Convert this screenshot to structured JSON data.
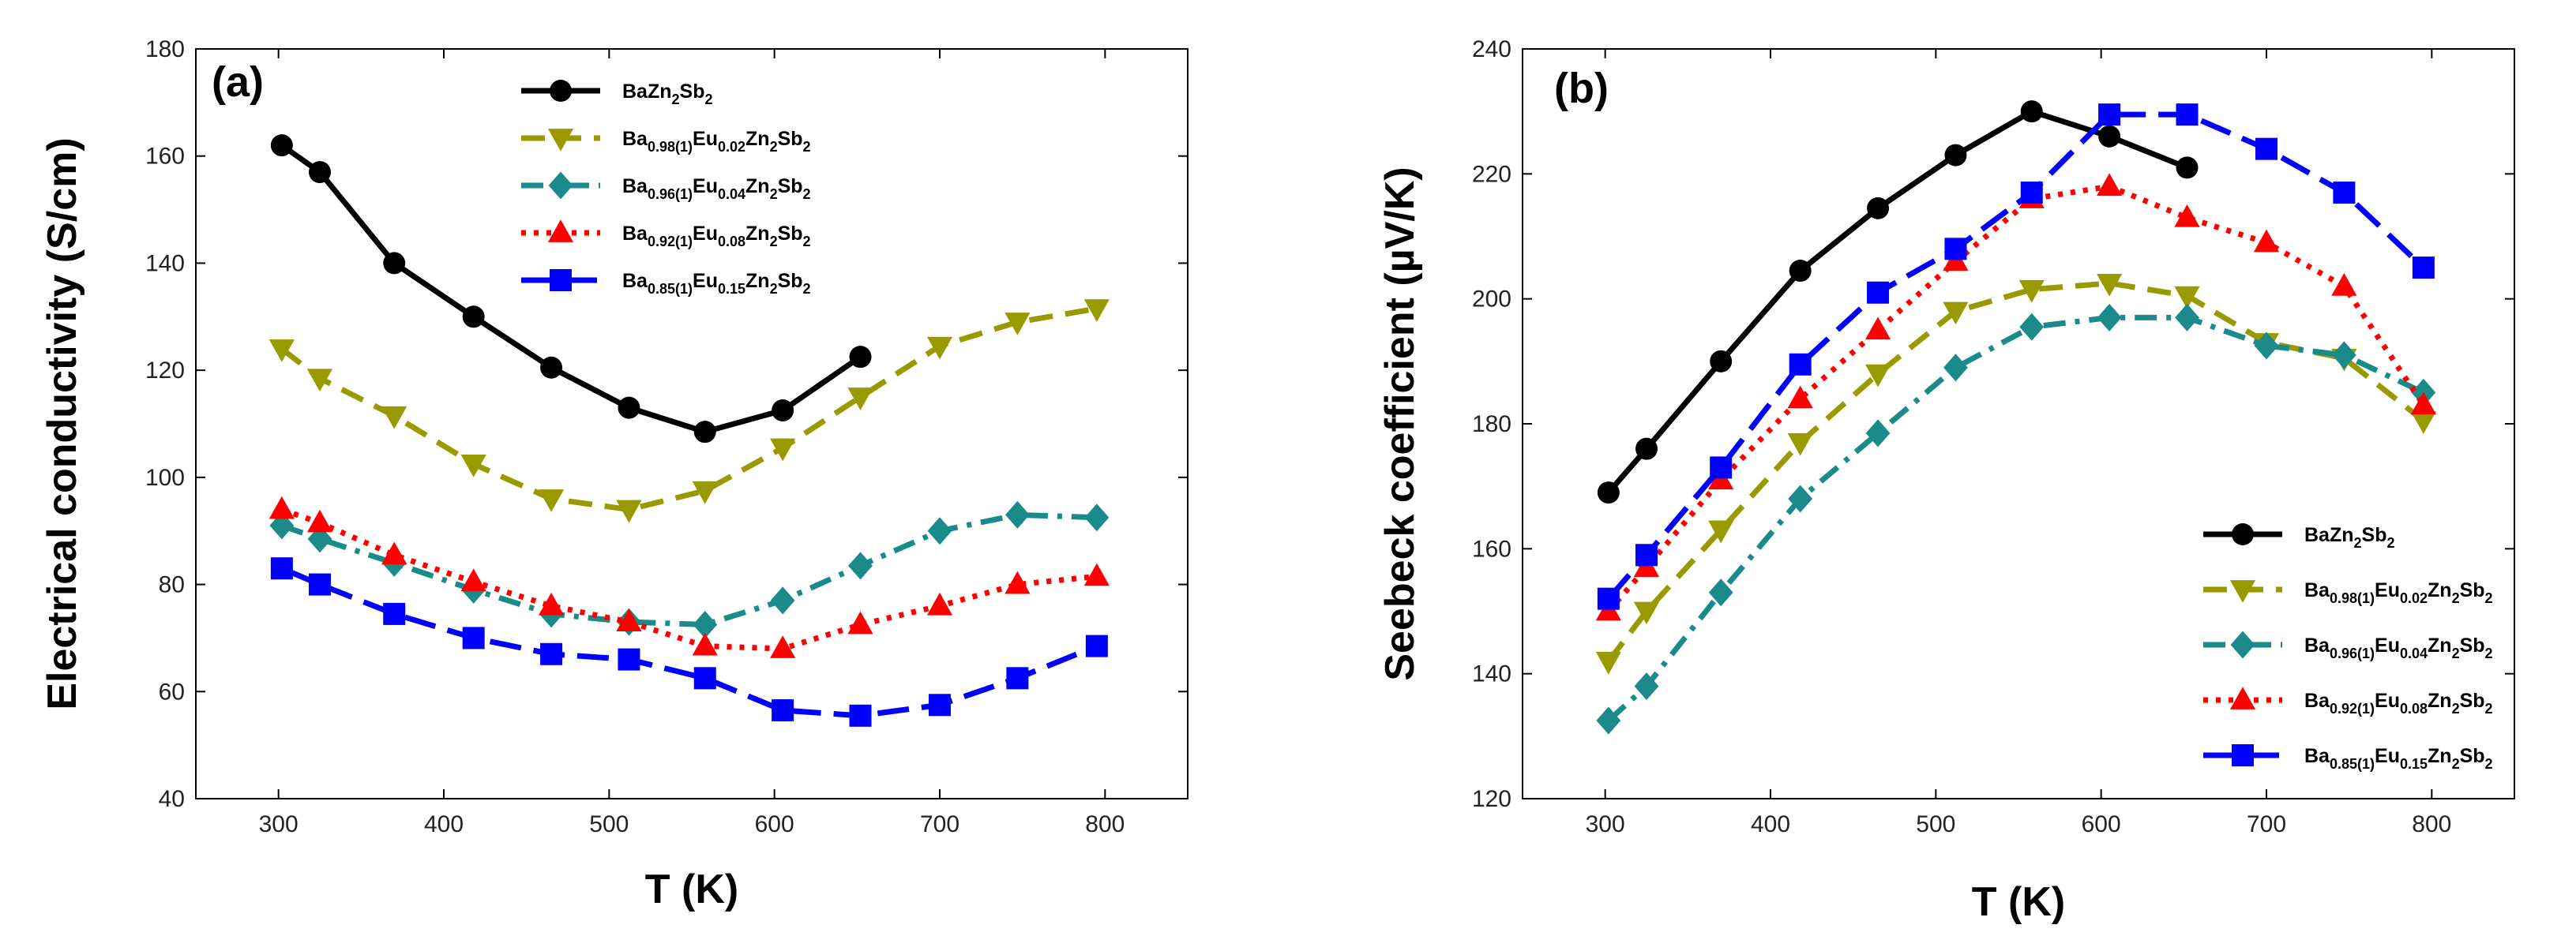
{
  "chart_data": [
    {
      "type": "line",
      "panel_label": "(a)",
      "xlabel": "T (K)",
      "ylabel": "Electrical conductivity (S/cm)",
      "xlim": [
        250,
        850
      ],
      "ylim": [
        40,
        180
      ],
      "xticks": [
        300,
        400,
        500,
        600,
        700,
        800
      ],
      "yticks": [
        40,
        60,
        80,
        100,
        120,
        140,
        160,
        180
      ],
      "legend_position": "top-center",
      "series": [
        {
          "name": "BaZn2Sb2",
          "color": "#000000",
          "marker": "circle",
          "dash": "solid",
          "x": [
            302,
            325,
            370,
            418,
            465,
            512,
            558,
            605,
            652
          ],
          "y": [
            162,
            157,
            140,
            130,
            120.5,
            113,
            108.5,
            112.5,
            122.5
          ]
        },
        {
          "name": "Ba0.98(1)Eu0.02Zn2Sb2",
          "color": "#999900",
          "marker": "triangle-down",
          "dash": "dashed",
          "x": [
            302,
            325,
            370,
            418,
            465,
            512,
            558,
            605,
            652,
            700,
            747,
            795
          ],
          "y": [
            124,
            118.5,
            111.5,
            102.5,
            96,
            94,
            97.5,
            105.5,
            115,
            124.5,
            129,
            131.5
          ]
        },
        {
          "name": "Ba0.96(1)Eu0.04Zn2Sb2",
          "color": "#1a8a8a",
          "marker": "diamond",
          "dash": "dashdot",
          "x": [
            302,
            325,
            370,
            418,
            465,
            512,
            558,
            605,
            652,
            700,
            747,
            795
          ],
          "y": [
            91,
            88.5,
            84,
            79,
            74.5,
            73,
            72.5,
            77,
            83.5,
            90,
            93,
            92.5
          ]
        },
        {
          "name": "Ba0.92(1)Eu0.08Zn2Sb2",
          "color": "#ff0000",
          "marker": "triangle-up",
          "dash": "dotted",
          "x": [
            302,
            325,
            370,
            418,
            465,
            512,
            558,
            605,
            652,
            700,
            747,
            795
          ],
          "y": [
            94,
            91.5,
            85.5,
            80.5,
            76,
            73,
            68.5,
            68,
            72.5,
            76,
            80,
            81.5
          ]
        },
        {
          "name": "Ba0.85(1)Eu0.15Zn2Sb2",
          "color": "#0000ff",
          "marker": "square",
          "dash": "longdash",
          "x": [
            302,
            325,
            370,
            418,
            465,
            512,
            558,
            605,
            652,
            700,
            747,
            795
          ],
          "y": [
            83,
            80,
            74.5,
            70,
            67,
            66,
            62.5,
            56.5,
            55.5,
            57.5,
            62.5,
            68.5
          ]
        }
      ]
    },
    {
      "type": "line",
      "panel_label": "(b)",
      "xlabel": "T (K)",
      "ylabel": "Seebeck coefficient (µV/K)",
      "xlim": [
        250,
        850
      ],
      "ylim": [
        120,
        240
      ],
      "xticks": [
        300,
        400,
        500,
        600,
        700,
        800
      ],
      "yticks": [
        120,
        140,
        160,
        180,
        200,
        220,
        240
      ],
      "legend_position": "bottom-right",
      "series": [
        {
          "name": "BaZn2Sb2",
          "color": "#000000",
          "marker": "circle",
          "dash": "solid",
          "x": [
            302,
            325,
            370,
            418,
            465,
            512,
            558,
            605,
            652
          ],
          "y": [
            169,
            176,
            190,
            204.5,
            214.5,
            223,
            230,
            226,
            221
          ]
        },
        {
          "name": "Ba0.98(1)Eu0.02Zn2Sb2",
          "color": "#999900",
          "marker": "triangle-down",
          "dash": "dashed",
          "x": [
            302,
            325,
            370,
            418,
            465,
            512,
            558,
            605,
            652,
            700,
            747,
            795
          ],
          "y": [
            142,
            150,
            163,
            177,
            188,
            198,
            201.5,
            202.5,
            200.5,
            193,
            190.5,
            180.5
          ]
        },
        {
          "name": "Ba0.96(1)Eu0.04Zn2Sb2",
          "color": "#1a8a8a",
          "marker": "diamond",
          "dash": "dashdot",
          "x": [
            302,
            325,
            370,
            418,
            465,
            512,
            558,
            605,
            652,
            700,
            747,
            795
          ],
          "y": [
            132.5,
            138,
            153,
            168,
            178.5,
            189,
            195.5,
            197,
            197,
            192.5,
            191,
            185
          ]
        },
        {
          "name": "Ba0.92(1)Eu0.08Zn2Sb2",
          "color": "#ff0000",
          "marker": "triangle-up",
          "dash": "dotted",
          "x": [
            302,
            325,
            370,
            418,
            465,
            512,
            558,
            605,
            652,
            700,
            747,
            795
          ],
          "y": [
            150,
            157,
            171,
            184,
            195,
            206,
            216,
            218,
            213,
            209,
            202,
            183
          ]
        },
        {
          "name": "Ba0.85(1)Eu0.15Zn2Sb2",
          "color": "#0000ff",
          "marker": "square",
          "dash": "longdash",
          "x": [
            302,
            325,
            370,
            418,
            465,
            512,
            558,
            605,
            652,
            700,
            747,
            795
          ],
          "y": [
            152,
            159,
            173,
            189.5,
            201,
            208,
            217,
            229.5,
            229.5,
            224,
            217,
            205
          ]
        }
      ]
    }
  ],
  "legend_labels": [
    {
      "base": "Ba",
      "parts": [
        {
          "t": "Zn",
          "s": ""
        },
        {
          "t": "",
          "s": "2"
        },
        {
          "t": "Sb",
          "s": ""
        },
        {
          "t": "",
          "s": "2"
        }
      ]
    },
    {
      "base": "Ba",
      "parts": [
        {
          "t": "",
          "s": "0.98(1)"
        },
        {
          "t": "Eu",
          "s": ""
        },
        {
          "t": "",
          "s": "0.02"
        },
        {
          "t": "Zn",
          "s": ""
        },
        {
          "t": "",
          "s": "2"
        },
        {
          "t": "Sb",
          "s": ""
        },
        {
          "t": "",
          "s": "2"
        }
      ]
    },
    {
      "base": "Ba",
      "parts": [
        {
          "t": "",
          "s": "0.96(1)"
        },
        {
          "t": "Eu",
          "s": ""
        },
        {
          "t": "",
          "s": "0.04"
        },
        {
          "t": "Zn",
          "s": ""
        },
        {
          "t": "",
          "s": "2"
        },
        {
          "t": "Sb",
          "s": ""
        },
        {
          "t": "",
          "s": "2"
        }
      ]
    },
    {
      "base": "Ba",
      "parts": [
        {
          "t": "",
          "s": "0.92(1)"
        },
        {
          "t": "Eu",
          "s": ""
        },
        {
          "t": "",
          "s": "0.08"
        },
        {
          "t": "Zn",
          "s": ""
        },
        {
          "t": "",
          "s": "2"
        },
        {
          "t": "Sb",
          "s": ""
        },
        {
          "t": "",
          "s": "2"
        }
      ]
    },
    {
      "base": "Ba",
      "parts": [
        {
          "t": "",
          "s": "0.85(1)"
        },
        {
          "t": "Eu",
          "s": ""
        },
        {
          "t": "",
          "s": "0.15"
        },
        {
          "t": "Zn",
          "s": ""
        },
        {
          "t": "",
          "s": "2"
        },
        {
          "t": "Sb",
          "s": ""
        },
        {
          "t": "",
          "s": "2"
        }
      ]
    }
  ]
}
